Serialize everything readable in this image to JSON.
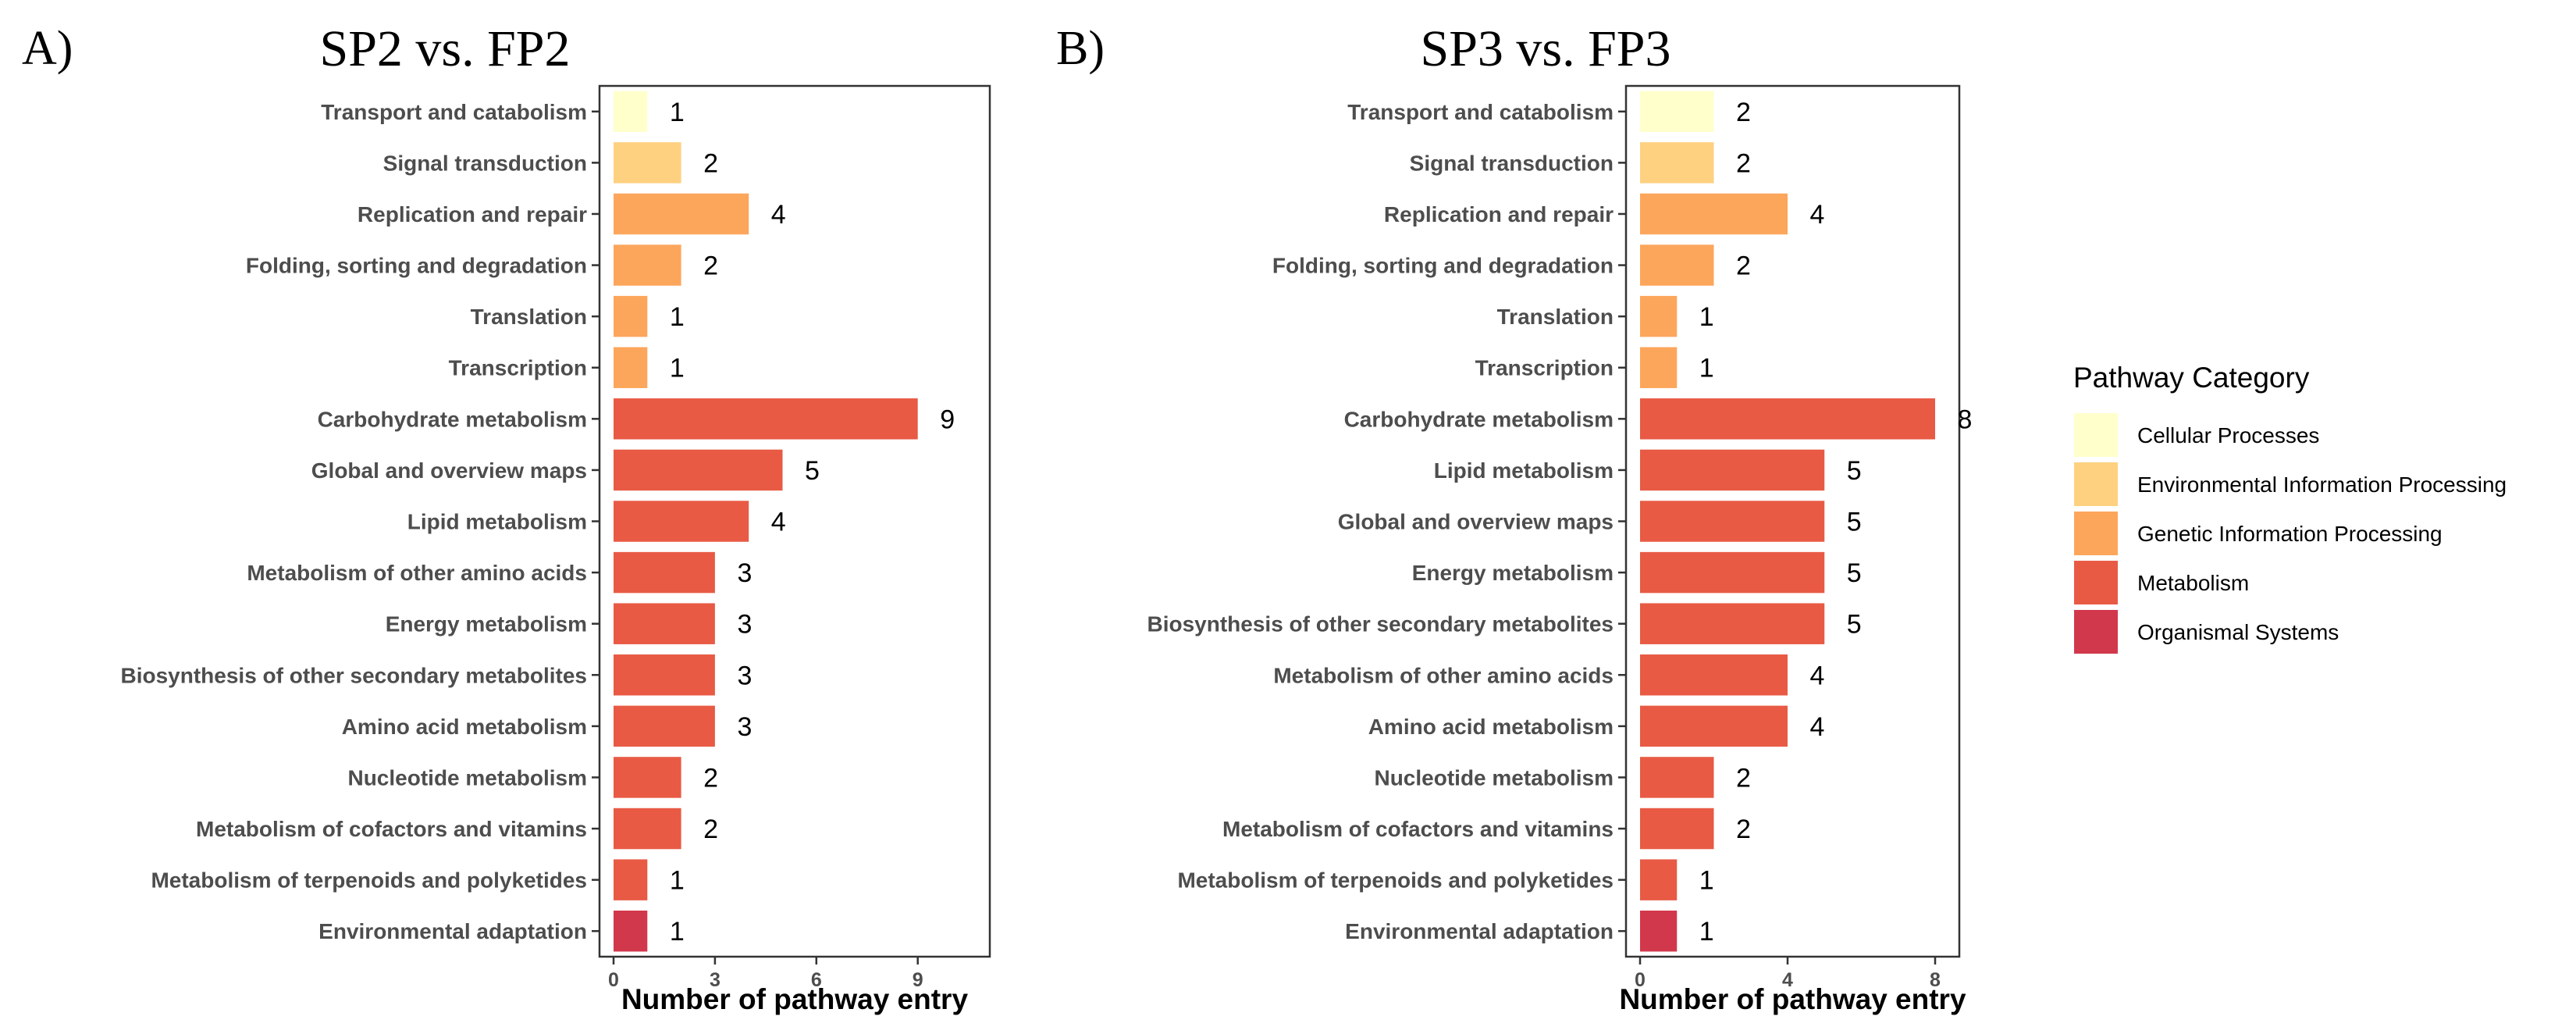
{
  "legend": {
    "title": "Pathway Category",
    "items": [
      {
        "label": "Cellular Processes",
        "color": "#ffffcc"
      },
      {
        "label": "Environmental Information Processing",
        "color": "#fed181"
      },
      {
        "label": "Genetic Information Processing",
        "color": "#fca65c"
      },
      {
        "label": "Metabolism",
        "color": "#e85a44"
      },
      {
        "label": "Organismal Systems",
        "color": "#d2384c"
      }
    ]
  },
  "chart_data": [
    {
      "type": "bar",
      "orientation": "horizontal",
      "panel": "A)",
      "title": "SP2 vs. FP2",
      "xlabel": "Number of pathway entry",
      "xlim": [
        0,
        10.8
      ],
      "xticks": [
        0,
        3,
        6,
        9
      ],
      "categories": [
        "Transport and catabolism",
        "Signal transduction",
        "Replication and repair",
        "Folding, sorting and degradation",
        "Translation",
        "Transcription",
        "Carbohydrate metabolism",
        "Global and overview maps",
        "Lipid metabolism",
        "Metabolism of other amino acids",
        "Energy metabolism",
        "Biosynthesis of other secondary metabolites",
        "Amino acid metabolism",
        "Nucleotide metabolism",
        "Metabolism of cofactors and vitamins",
        "Metabolism of terpenoids and polyketides",
        "Environmental adaptation"
      ],
      "values": [
        1,
        2,
        4,
        2,
        1,
        1,
        9,
        5,
        4,
        3,
        3,
        3,
        3,
        2,
        2,
        1,
        1
      ],
      "groups": [
        "Cellular Processes",
        "Environmental Information Processing",
        "Genetic Information Processing",
        "Genetic Information Processing",
        "Genetic Information Processing",
        "Genetic Information Processing",
        "Metabolism",
        "Metabolism",
        "Metabolism",
        "Metabolism",
        "Metabolism",
        "Metabolism",
        "Metabolism",
        "Metabolism",
        "Metabolism",
        "Metabolism",
        "Organismal Systems"
      ],
      "grid": false,
      "legend": "right"
    },
    {
      "type": "bar",
      "orientation": "horizontal",
      "panel": "B)",
      "title": "SP3 vs. FP3",
      "xlabel": "Number of pathway entry",
      "xlim": [
        0,
        9.5
      ],
      "xticks": [
        0,
        4,
        8
      ],
      "categories": [
        "Transport and catabolism",
        "Signal transduction",
        "Replication and repair",
        "Folding, sorting and degradation",
        "Translation",
        "Transcription",
        "Carbohydrate metabolism",
        "Lipid metabolism",
        "Global and overview maps",
        "Energy metabolism",
        "Biosynthesis of other secondary metabolites",
        "Metabolism of other amino acids",
        "Amino acid metabolism",
        "Nucleotide metabolism",
        "Metabolism of cofactors and vitamins",
        "Metabolism of terpenoids and polyketides",
        "Environmental adaptation"
      ],
      "values": [
        2,
        2,
        4,
        2,
        1,
        1,
        8,
        5,
        5,
        5,
        5,
        4,
        4,
        2,
        2,
        1,
        1
      ],
      "groups": [
        "Cellular Processes",
        "Environmental Information Processing",
        "Genetic Information Processing",
        "Genetic Information Processing",
        "Genetic Information Processing",
        "Genetic Information Processing",
        "Metabolism",
        "Metabolism",
        "Metabolism",
        "Metabolism",
        "Metabolism",
        "Metabolism",
        "Metabolism",
        "Metabolism",
        "Metabolism",
        "Metabolism",
        "Organismal Systems"
      ],
      "grid": false,
      "legend": "right"
    }
  ]
}
